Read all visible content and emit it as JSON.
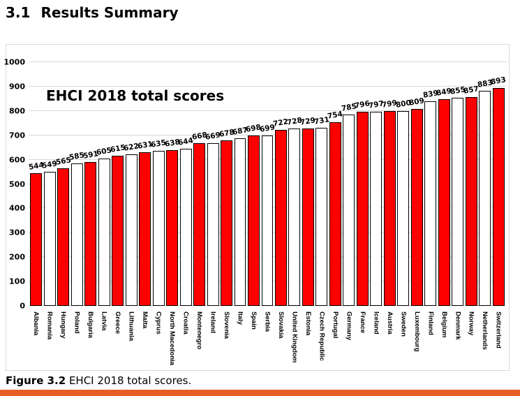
{
  "heading": {
    "number": "3.1",
    "title": "Results Summary"
  },
  "caption": {
    "label": "Figure 3.2",
    "text": " EHCI 2018 total scores."
  },
  "footer": {
    "band_color": "#e85c25"
  },
  "chart_data": {
    "type": "bar",
    "title": "EHCI 2018 total scores",
    "categories": [
      "Albania",
      "Romania",
      "Hungary",
      "Poland",
      "Bulgaria",
      "Latvia",
      "Greece",
      "Lithuania",
      "Malta",
      "Cyprus",
      "North Macedonia",
      "Croatia",
      "Montenegro",
      "Ireland",
      "Slovenia",
      "Italy",
      "Spain",
      "Serbia",
      "Slovakia",
      "United Kingdom",
      "Estonia",
      "Czech Republic",
      "Portugal",
      "Germany",
      "France",
      "Iceland",
      "Austria",
      "Sweden",
      "Luxembourg",
      "Finland",
      "Belgium",
      "Denmark",
      "Norway",
      "Netherlands",
      "Switzerland"
    ],
    "values": [
      544,
      549,
      565,
      585,
      591,
      605,
      615,
      622,
      631,
      635,
      638,
      644,
      668,
      669,
      678,
      687,
      698,
      699,
      722,
      728,
      729,
      731,
      754,
      785,
      796,
      797,
      799,
      800,
      809,
      839,
      849,
      855,
      857,
      883,
      893
    ],
    "xlabel": "",
    "ylabel": "",
    "ylim": [
      0,
      1000
    ],
    "yticks": [
      0,
      100,
      200,
      300,
      400,
      500,
      600,
      700,
      800,
      900,
      1000
    ],
    "grid": true,
    "legend": "none",
    "value_labels": true,
    "bar_colors_alternating": [
      "#ff0000",
      "#ffffff"
    ],
    "bar_border_color": "#000000",
    "gridline_color": "#d9d9d9"
  }
}
